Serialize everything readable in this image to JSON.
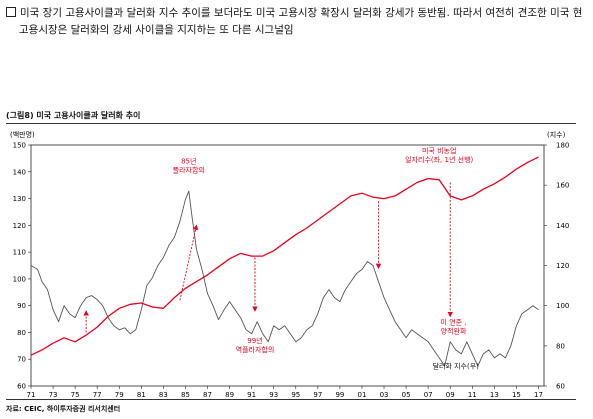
{
  "headline": {
    "line1": "미국 장기 고용사이클과 달러화 지수 추이를 보더라도 미국 고용시장 확장시 달러화 강세가 동반됨. 따라서 여전히 견조한 미국 현",
    "line2": "고용시장은 달러화의 강세 사이클을 지지하는 또 다른 시그널임"
  },
  "figure": {
    "title": "(그림8) 미국 고용사이클과 달러화 추이",
    "source": "자료: CEIC, 하이투자증권 리서치센터"
  },
  "chart_data": {
    "type": "line",
    "left_unit": "(백만명)",
    "right_unit": "(지수)",
    "x_ticks": [
      "71",
      "73",
      "75",
      "77",
      "79",
      "81",
      "83",
      "85",
      "87",
      "89",
      "91",
      "93",
      "95",
      "97",
      "99",
      "01",
      "03",
      "05",
      "07",
      "09",
      "11",
      "13",
      "15",
      "17"
    ],
    "xlim": [
      1971,
      2017.5
    ],
    "ylim_left": [
      60,
      150
    ],
    "ylim_right": [
      60,
      180
    ],
    "y_ticks_left": [
      60,
      70,
      80,
      90,
      100,
      110,
      120,
      130,
      140,
      150
    ],
    "y_ticks_right": [
      60,
      80,
      100,
      120,
      140,
      160,
      180
    ],
    "series": [
      {
        "axis": "left",
        "color": "#e8001c",
        "points": [
          [
            1971.0,
            71.5
          ],
          [
            1972.0,
            73.5
          ],
          [
            1973.0,
            76.0
          ],
          [
            1974.0,
            78.0
          ],
          [
            1975.0,
            76.5
          ],
          [
            1976.0,
            79.0
          ],
          [
            1977.0,
            82.0
          ],
          [
            1978.0,
            86.0
          ],
          [
            1979.0,
            89.0
          ],
          [
            1980.0,
            90.5
          ],
          [
            1981.0,
            91.0
          ],
          [
            1982.0,
            89.5
          ],
          [
            1983.0,
            89.0
          ],
          [
            1984.0,
            93.0
          ],
          [
            1985.0,
            96.5
          ],
          [
            1986.0,
            99.0
          ],
          [
            1987.0,
            101.5
          ],
          [
            1988.0,
            104.5
          ],
          [
            1989.0,
            107.5
          ],
          [
            1990.0,
            109.5
          ],
          [
            1991.0,
            108.5
          ],
          [
            1992.0,
            108.5
          ],
          [
            1993.0,
            110.5
          ],
          [
            1994.0,
            113.5
          ],
          [
            1995.0,
            116.5
          ],
          [
            1996.0,
            119.0
          ],
          [
            1997.0,
            122.0
          ],
          [
            1998.0,
            125.0
          ],
          [
            1999.0,
            128.0
          ],
          [
            2000.0,
            131.0
          ],
          [
            2001.0,
            132.0
          ],
          [
            2002.0,
            130.5
          ],
          [
            2003.0,
            130.0
          ],
          [
            2004.0,
            131.0
          ],
          [
            2005.0,
            133.5
          ],
          [
            2006.0,
            136.0
          ],
          [
            2007.0,
            137.5
          ],
          [
            2008.0,
            137.0
          ],
          [
            2009.0,
            131.0
          ],
          [
            2010.0,
            129.5
          ],
          [
            2011.0,
            131.0
          ],
          [
            2012.0,
            133.5
          ],
          [
            2013.0,
            135.5
          ],
          [
            2014.0,
            138.0
          ],
          [
            2015.0,
            141.0
          ],
          [
            2016.0,
            143.5
          ],
          [
            2017.0,
            145.5
          ]
        ]
      },
      {
        "name": "달러화 지수(우)",
        "axis": "right",
        "color": "#555555",
        "points": [
          [
            1971.0,
            120.0
          ],
          [
            1971.6,
            118.0
          ],
          [
            1972.0,
            112.0
          ],
          [
            1972.5,
            108.0
          ],
          [
            1973.0,
            98.0
          ],
          [
            1973.5,
            92.0
          ],
          [
            1974.0,
            100.0
          ],
          [
            1974.5,
            96.0
          ],
          [
            1975.0,
            94.0
          ],
          [
            1975.5,
            100.0
          ],
          [
            1976.0,
            104.0
          ],
          [
            1976.5,
            105.0
          ],
          [
            1977.0,
            103.0
          ],
          [
            1977.5,
            100.0
          ],
          [
            1978.0,
            94.0
          ],
          [
            1978.5,
            90.0
          ],
          [
            1979.0,
            88.0
          ],
          [
            1979.5,
            89.0
          ],
          [
            1980.0,
            86.0
          ],
          [
            1980.5,
            88.0
          ],
          [
            1981.0,
            98.0
          ],
          [
            1981.5,
            110.0
          ],
          [
            1982.0,
            114.0
          ],
          [
            1982.5,
            120.0
          ],
          [
            1983.0,
            124.0
          ],
          [
            1983.5,
            130.0
          ],
          [
            1984.0,
            134.0
          ],
          [
            1984.5,
            142.0
          ],
          [
            1985.0,
            153.0
          ],
          [
            1985.3,
            157.0
          ],
          [
            1985.6,
            144.0
          ],
          [
            1986.0,
            128.0
          ],
          [
            1986.5,
            118.0
          ],
          [
            1987.0,
            106.0
          ],
          [
            1987.5,
            100.0
          ],
          [
            1988.0,
            93.0
          ],
          [
            1988.5,
            98.0
          ],
          [
            1989.0,
            102.0
          ],
          [
            1989.5,
            98.0
          ],
          [
            1990.0,
            94.0
          ],
          [
            1990.5,
            88.0
          ],
          [
            1991.0,
            86.0
          ],
          [
            1991.5,
            92.0
          ],
          [
            1992.0,
            86.0
          ],
          [
            1992.5,
            82.0
          ],
          [
            1993.0,
            90.0
          ],
          [
            1993.5,
            88.0
          ],
          [
            1994.0,
            90.0
          ],
          [
            1994.5,
            86.0
          ],
          [
            1995.0,
            82.0
          ],
          [
            1995.5,
            84.0
          ],
          [
            1996.0,
            88.0
          ],
          [
            1996.5,
            90.0
          ],
          [
            1997.0,
            96.0
          ],
          [
            1997.5,
            104.0
          ],
          [
            1998.0,
            108.0
          ],
          [
            1998.5,
            104.0
          ],
          [
            1999.0,
            102.0
          ],
          [
            1999.5,
            108.0
          ],
          [
            2000.0,
            112.0
          ],
          [
            2000.5,
            116.0
          ],
          [
            2001.0,
            118.0
          ],
          [
            2001.5,
            122.0
          ],
          [
            2002.0,
            120.0
          ],
          [
            2002.5,
            112.0
          ],
          [
            2003.0,
            104.0
          ],
          [
            2003.5,
            98.0
          ],
          [
            2004.0,
            92.0
          ],
          [
            2004.5,
            88.0
          ],
          [
            2005.0,
            84.0
          ],
          [
            2005.5,
            88.0
          ],
          [
            2006.0,
            86.0
          ],
          [
            2006.5,
            84.0
          ],
          [
            2007.0,
            82.0
          ],
          [
            2007.5,
            78.0
          ],
          [
            2008.0,
            74.0
          ],
          [
            2008.5,
            70.0
          ],
          [
            2009.0,
            82.0
          ],
          [
            2009.5,
            78.0
          ],
          [
            2010.0,
            76.0
          ],
          [
            2010.5,
            82.0
          ],
          [
            2011.0,
            76.0
          ],
          [
            2011.5,
            70.0
          ],
          [
            2012.0,
            76.0
          ],
          [
            2012.5,
            78.0
          ],
          [
            2013.0,
            74.0
          ],
          [
            2013.5,
            76.0
          ],
          [
            2014.0,
            74.0
          ],
          [
            2014.5,
            80.0
          ],
          [
            2015.0,
            90.0
          ],
          [
            2015.5,
            96.0
          ],
          [
            2016.0,
            98.0
          ],
          [
            2016.5,
            100.0
          ],
          [
            2017.0,
            98.0
          ]
        ]
      }
    ],
    "annotations": [
      {
        "text": [
          "85년",
          "플라자합의"
        ],
        "color": "#e8001c",
        "x": 1985.3,
        "y_left": 143
      },
      {
        "text": [
          "99년",
          "역플라자합의"
        ],
        "color": "#e8001c",
        "x": 1991.3,
        "y_left": 76
      },
      {
        "text": [
          "미국 비농업",
          "일자리수(좌, 1년 선행)"
        ],
        "color": "#e8001c",
        "x": 2008.0,
        "y_left": 147
      },
      {
        "text": [
          "미 연준 ,",
          "양적완화"
        ],
        "color": "#e8001c",
        "x": 2009.3,
        "y_left": 83
      },
      {
        "text": [
          "달러화 지수(우)"
        ],
        "color": "#111111",
        "x": 2009.5,
        "y_left": 66.5
      }
    ],
    "arrows": [
      {
        "x1": 1976.0,
        "y1": 80,
        "x2": 1976.0,
        "y2": 88
      },
      {
        "x1": 1984.5,
        "y1": 92,
        "x2": 1986.0,
        "y2": 120
      },
      {
        "x1": 1991.3,
        "y1": 108,
        "x2": 1991.3,
        "y2": 88
      },
      {
        "x1": 2002.5,
        "y1": 129,
        "x2": 2002.5,
        "y2": 104
      },
      {
        "x1": 2009.0,
        "y1": 136,
        "x2": 2009.0,
        "y2": 86
      }
    ]
  }
}
